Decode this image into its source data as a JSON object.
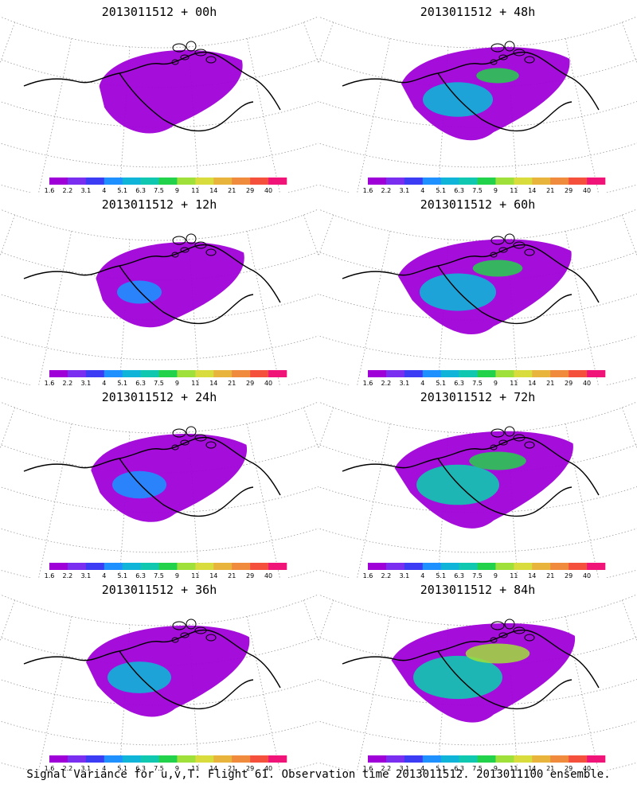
{
  "panels": [
    {
      "title": "2013011512 + 00h",
      "level": 0.15
    },
    {
      "title": "2013011512 + 12h",
      "level": 0.25
    },
    {
      "title": "2013011512 + 24h",
      "level": 0.4
    },
    {
      "title": "2013011512 + 36h",
      "level": 0.55
    },
    {
      "title": "2013011512 + 48h",
      "level": 0.65
    },
    {
      "title": "2013011512 + 60h",
      "level": 0.75
    },
    {
      "title": "2013011512 + 72h",
      "level": 0.85
    },
    {
      "title": "2013011512 + 84h",
      "level": 0.95
    }
  ],
  "colorbar": {
    "labels": [
      "1.6",
      "2.2",
      "3.1",
      "4",
      "5.1",
      "6.3",
      "7.5",
      "9",
      "11",
      "14",
      "21",
      "29",
      "40"
    ],
    "colors": [
      "#a000d8",
      "#7a2ef0",
      "#3c3cf5",
      "#1e90ff",
      "#10b4d8",
      "#10c8b0",
      "#22d24a",
      "#a0e03a",
      "#d8dc3c",
      "#e8b43c",
      "#f08a3c",
      "#f4503c",
      "#f01478"
    ]
  },
  "caption": "Signal Variance for u,v,T. Flight 61. Observation time 2013011512. 2013011100 ensemble."
}
